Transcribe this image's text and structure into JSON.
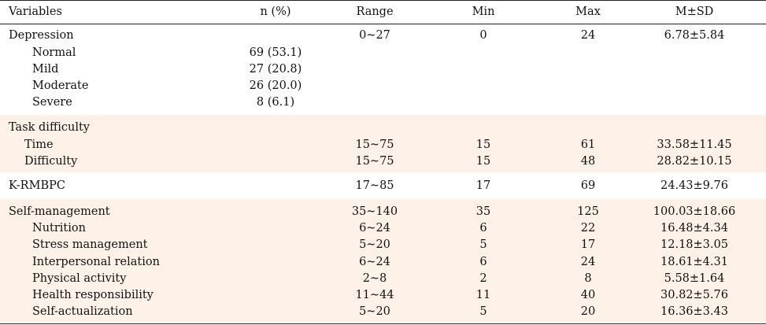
{
  "headers": [
    "Variables",
    "n (%)",
    "Range",
    "Min",
    "Max",
    "M±SD"
  ],
  "rows": [
    {
      "label": "Depression",
      "n": "",
      "range": "0~27",
      "min": "0",
      "max": "24",
      "msd": "6.78±5.84"
    },
    {
      "label": "Normal",
      "n": "69 (53.1)",
      "range": "",
      "min": "",
      "max": "",
      "msd": ""
    },
    {
      "label": "Mild",
      "n": "27 (20.8)",
      "range": "",
      "min": "",
      "max": "",
      "msd": ""
    },
    {
      "label": "Moderate",
      "n": "26 (20.0)",
      "range": "",
      "min": "",
      "max": "",
      "msd": ""
    },
    {
      "label": "Severe",
      "n": "8 (6.1)",
      "range": "",
      "min": "",
      "max": "",
      "msd": ""
    },
    {
      "label": "Task difficulty",
      "n": "",
      "range": "",
      "min": "",
      "max": "",
      "msd": ""
    },
    {
      "label": "Time",
      "n": "",
      "range": "15~75",
      "min": "15",
      "max": "61",
      "msd": "33.58±11.45"
    },
    {
      "label": "Difficulty",
      "n": "",
      "range": "15~75",
      "min": "15",
      "max": "48",
      "msd": "28.82±10.15"
    },
    {
      "label": "K-RMBPC",
      "n": "",
      "range": "17~85",
      "min": "17",
      "max": "69",
      "msd": "24.43±9.76"
    },
    {
      "label": "Self-management",
      "n": "",
      "range": "35~140",
      "min": "35",
      "max": "125",
      "msd": "100.03±18.66"
    },
    {
      "label": "Nutrition",
      "n": "",
      "range": "6~24",
      "min": "6",
      "max": "22",
      "msd": "16.48±4.34"
    },
    {
      "label": "Stress management",
      "n": "",
      "range": "5~20",
      "min": "5",
      "max": "17",
      "msd": "12.18±3.05"
    },
    {
      "label": "Interpersonal relation",
      "n": "",
      "range": "6~24",
      "min": "6",
      "max": "24",
      "msd": "18.61±4.31"
    },
    {
      "label": "Physical activity",
      "n": "",
      "range": "2~8",
      "min": "2",
      "max": "8",
      "msd": "5.58±1.64"
    },
    {
      "label": "Health responsibility",
      "n": "",
      "range": "11~44",
      "min": "11",
      "max": "40",
      "msd": "30.82±5.76"
    },
    {
      "label": "Self-actualization",
      "n": "",
      "range": "5~20",
      "min": "5",
      "max": "20",
      "msd": "16.36±3.43"
    }
  ]
}
